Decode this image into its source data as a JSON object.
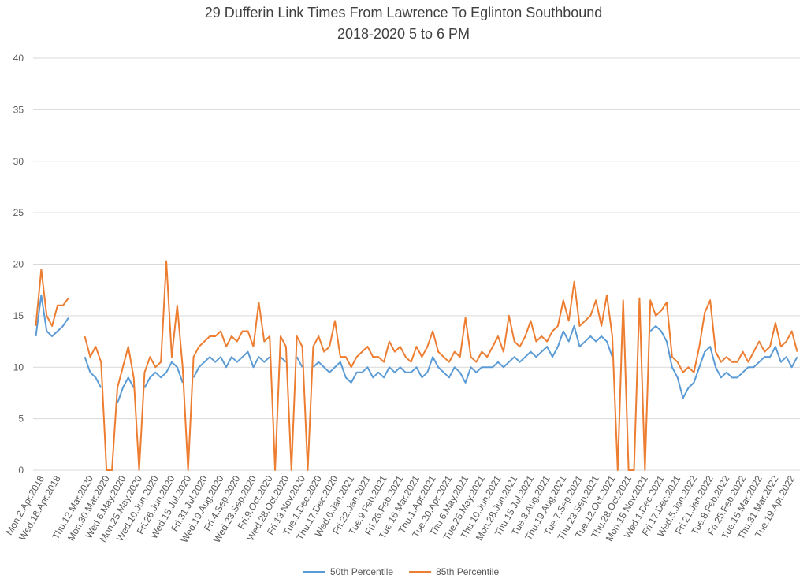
{
  "chart_data": {
    "type": "line",
    "title": "29 Dufferin Link Times From Lawrence To Eglinton Southbound",
    "subtitle": "2018-2020 5 to 6 PM",
    "categories": [
      null,
      "Mon.2.Apr.2018",
      null,
      null,
      "Wed.18.Apr.2018",
      null,
      null,
      null,
      null,
      null,
      "Thu.12.Mar.2020",
      null,
      null,
      "Mon.30.Mar.2020",
      null,
      null,
      "Wed.6.May.2020",
      null,
      null,
      "Mon.25.May.2020",
      null,
      null,
      "Wed.10.Jun.2020",
      null,
      null,
      "Fri.26.Jun.2020",
      null,
      null,
      "Wed.15.Jul.2020",
      null,
      null,
      "Fri.31.Jul.2020",
      null,
      null,
      "Wed.19.Aug.2020",
      null,
      null,
      "Fri.4.Sep.2020",
      null,
      null,
      "Wed.23.Sep.2020",
      null,
      null,
      "Fri.9.Oct.2020",
      null,
      null,
      "Wed.28.Oct.2020",
      null,
      null,
      "Fri.13.Nov.2020",
      null,
      null,
      "Tue.1.Dec.2020",
      null,
      null,
      "Thu.17.Dec.2020",
      null,
      null,
      "Wed.6.Jan.2021",
      null,
      null,
      "Fri.22.Jan.2021",
      null,
      null,
      "Tue.9.Feb.2021",
      null,
      null,
      "Fri.26.Feb.2021",
      null,
      null,
      "Tue.16.Mar.2021",
      null,
      null,
      "Thu.1.Apr.2021",
      null,
      null,
      "Tue.20.Apr.2021",
      null,
      null,
      "Thu.6.May.2021",
      null,
      null,
      "Tue.25.May.2021",
      null,
      null,
      "Thu.10.Jun.2021",
      null,
      null,
      "Mon.28.Jun.2021",
      null,
      null,
      "Thu.15.Jul.2021",
      null,
      null,
      "Tue.3.Aug.2021",
      null,
      null,
      "Thu.19.Aug.2021",
      null,
      null,
      "Tue.7.Sep.2021",
      null,
      null,
      "Thu.23.Sep.2021",
      null,
      null,
      "Tue.12.Oct.2021",
      null,
      null,
      "Thu.28.Oct.2021",
      null,
      null,
      "Mon.15.Nov.2021",
      null,
      null,
      "Wed.1.Dec.2021",
      null,
      null,
      "Fri.17.Dec.2021",
      null,
      null,
      "Wed.5.Jan.2022",
      null,
      null,
      "Fri.21.Jan.2022",
      null,
      null,
      "Tue.8.Feb.2022",
      null,
      null,
      "Fri.25.Feb.2022",
      null,
      null,
      "Tue.15.Mar.2022",
      null,
      null,
      "Thu.31.Mar.2022",
      null,
      null,
      "Tue.19.Apr.2022",
      null
    ],
    "series": [
      {
        "name": "50th Percentile",
        "color": "#5b9bd5",
        "values": [
          13,
          17,
          13.5,
          13,
          13.5,
          14,
          14.8,
          null,
          null,
          11,
          9.5,
          9,
          8,
          null,
          null,
          6.5,
          8,
          9,
          8,
          null,
          8,
          9,
          9.5,
          9,
          9.5,
          10.5,
          10,
          8.5,
          null,
          9,
          10,
          10.5,
          11,
          10.5,
          11,
          10,
          11,
          10.5,
          11,
          11.5,
          10,
          11,
          10.5,
          11,
          null,
          11,
          10.5,
          null,
          11,
          10,
          null,
          10,
          10.5,
          10,
          9.5,
          10,
          10.5,
          9,
          8.5,
          9.5,
          9.5,
          10,
          9,
          9.5,
          9,
          10,
          9.5,
          10,
          9.5,
          9.5,
          10,
          9,
          9.5,
          11,
          10,
          9.5,
          9,
          10,
          9.5,
          8.5,
          10,
          9.5,
          10,
          10,
          10,
          10.5,
          10,
          10.5,
          11,
          10.5,
          11,
          11.5,
          11,
          11.5,
          12,
          11,
          12,
          13.5,
          12.5,
          14,
          12,
          12.5,
          13,
          12.5,
          13,
          12.5,
          11,
          null,
          12.5,
          null,
          null,
          12,
          null,
          13.5,
          14,
          13.5,
          12.5,
          10,
          9,
          7,
          8,
          8.5,
          10,
          11.5,
          12,
          10,
          9,
          9.5,
          9,
          9,
          9.5,
          10,
          10,
          10.5,
          11,
          11,
          12,
          10.5,
          11,
          10,
          11
        ]
      },
      {
        "name": "85th Percentile",
        "color": "#ed7d31",
        "values": [
          14,
          19.5,
          15,
          14,
          16,
          16,
          16.7,
          null,
          null,
          13,
          11,
          12,
          10.5,
          0,
          0,
          8,
          10,
          12,
          9,
          0,
          9.5,
          11,
          10,
          10.5,
          20.3,
          11,
          16,
          10,
          0,
          11,
          12,
          12.5,
          13,
          13,
          13.5,
          12,
          13,
          12.5,
          13.5,
          13.5,
          12,
          16.3,
          12.5,
          13,
          0,
          13,
          12,
          0,
          13,
          12,
          0,
          12,
          13,
          11.5,
          12,
          14.5,
          11,
          11,
          10,
          11,
          11.5,
          12,
          11,
          11,
          10.5,
          12.5,
          11.5,
          12,
          11,
          10.5,
          12,
          11,
          12,
          13.5,
          11.5,
          11,
          10.5,
          11.5,
          11,
          14.8,
          11,
          10.5,
          11.5,
          11,
          12,
          13,
          11.5,
          15,
          12.5,
          12,
          13,
          14.5,
          12.5,
          13,
          12.5,
          13.5,
          14,
          16.5,
          14.5,
          18.3,
          14,
          14.5,
          15,
          16.5,
          14,
          17,
          13,
          0,
          16.5,
          0,
          0,
          16.7,
          0,
          16.5,
          15,
          15.5,
          16.3,
          11,
          10.5,
          9.5,
          10,
          9.5,
          12,
          15.3,
          16.5,
          11.5,
          10.5,
          11,
          10.5,
          10.5,
          11.5,
          10.5,
          11.5,
          12.5,
          11.5,
          12,
          14.3,
          12,
          12.5,
          13.5,
          11.5
        ]
      }
    ],
    "ylim": [
      0,
      40
    ],
    "yticks": [
      0,
      5,
      10,
      15,
      20,
      25,
      30,
      35,
      40
    ],
    "grid": true,
    "legend": "bottom"
  }
}
